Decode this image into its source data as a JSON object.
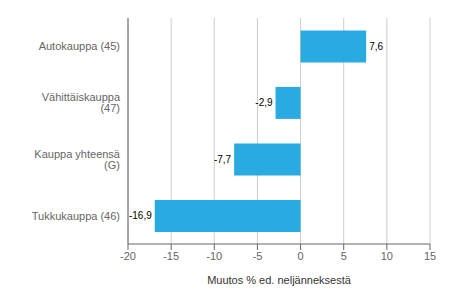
{
  "chart_data": {
    "type": "bar",
    "orientation": "horizontal",
    "categories": [
      "Tukkukauppa (46)",
      "Kauppa yhteensä (G)",
      "Vähittäiskauppa (47)",
      "Autokauppa (45)"
    ],
    "values": [
      -16.9,
      -7.7,
      -2.9,
      7.6
    ],
    "value_labels": [
      "-16,9",
      "-7,7",
      "-2,9",
      "7,6"
    ],
    "data_labels": true,
    "color": "#29ABE2",
    "xlabel": "Muutos % ed. neljänneksestä",
    "xlim": [
      -20,
      15
    ],
    "xticks": [
      -20,
      -15,
      -10,
      -5,
      0,
      5,
      10,
      15
    ],
    "grid": true
  }
}
